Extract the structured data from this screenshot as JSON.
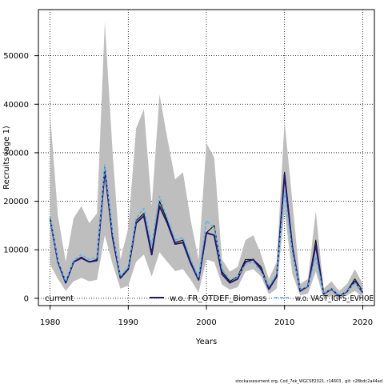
{
  "chart_data": {
    "type": "line",
    "xlabel": "Years",
    "ylabel": "Recruits (age 1)",
    "xlim": [
      1978.5,
      2021.5
    ],
    "ylim": [
      -1500,
      59500
    ],
    "x_ticks": [
      1980,
      1990,
      2000,
      2010,
      2020
    ],
    "y_ticks": [
      0,
      10000,
      20000,
      30000,
      40000,
      50000
    ],
    "grid": true,
    "legend_position": "bottom",
    "x": [
      1980,
      1981,
      1982,
      1983,
      1984,
      1985,
      1986,
      1987,
      1988,
      1989,
      1990,
      1991,
      1992,
      1993,
      1994,
      1995,
      1996,
      1997,
      1998,
      1999,
      2000,
      2001,
      2002,
      2003,
      2004,
      2005,
      2006,
      2007,
      2008,
      2009,
      2010,
      2011,
      2012,
      2013,
      2014,
      2015,
      2016,
      2017,
      2018,
      2019,
      2020
    ],
    "band": {
      "color": "#bebebe",
      "lower": [
        7000,
        4000,
        1500,
        3500,
        4200,
        3500,
        3800,
        13000,
        7000,
        2000,
        2600,
        7500,
        9000,
        4500,
        9500,
        7500,
        5600,
        6000,
        3800,
        1200,
        8000,
        7500,
        2800,
        1800,
        2300,
        5500,
        6000,
        4500,
        800,
        2000,
        18000,
        5000,
        600,
        1000,
        5500,
        50,
        400,
        100,
        600,
        1500,
        300
      ],
      "upper": [
        38000,
        17000,
        7500,
        16500,
        19000,
        15500,
        17500,
        57000,
        30000,
        8000,
        14500,
        35000,
        39000,
        19000,
        42000,
        33000,
        24500,
        26000,
        16000,
        8000,
        32000,
        29000,
        8000,
        5500,
        6500,
        12000,
        13000,
        9000,
        4000,
        7500,
        36500,
        20000,
        3000,
        4000,
        18000,
        2000,
        3500,
        1500,
        3000,
        6000,
        3000
      ]
    },
    "series": [
      {
        "name": "current",
        "color": "#000000",
        "width": 1,
        "values": [
          16500,
          7500,
          3500,
          7500,
          8500,
          7500,
          8000,
          27000,
          13000,
          4500,
          6000,
          16000,
          17500,
          9500,
          20000,
          16000,
          11500,
          12000,
          7500,
          4000,
          13500,
          15000,
          5500,
          3500,
          4500,
          8000,
          8000,
          6500,
          2000,
          4500,
          26000,
          11000,
          1500,
          2500,
          12000,
          1000,
          2000,
          500,
          1500,
          4000,
          1500
        ]
      },
      {
        "name": "w.o. FR_OTDEF_Biomass",
        "color": "#27186a",
        "width": 2,
        "values": [
          16500,
          7500,
          3200,
          7500,
          8300,
          7500,
          7800,
          26500,
          12500,
          4200,
          6000,
          15500,
          17000,
          9000,
          19000,
          15500,
          11200,
          11500,
          7200,
          3800,
          13500,
          13000,
          5000,
          3200,
          4000,
          7500,
          8000,
          6000,
          1900,
          4500,
          25500,
          10500,
          1500,
          2500,
          11000,
          900,
          1900,
          500,
          1400,
          3500,
          1200
        ]
      },
      {
        "name": "w.o. VAST_IGFS_EVHOE",
        "color": "#57b4e6",
        "width": 1.5,
        "dashed": true,
        "values": [
          16800,
          7800,
          3500,
          7800,
          9000,
          8000,
          8500,
          27500,
          13500,
          4500,
          6500,
          16500,
          18500,
          11000,
          21000,
          16500,
          12000,
          12500,
          8000,
          4200,
          16000,
          14500,
          6000,
          3800,
          4500,
          7000,
          7500,
          5500,
          2500,
          5000,
          22000,
          9500,
          1800,
          2500,
          8500,
          1000,
          2000,
          600,
          1500,
          3200,
          1500
        ]
      }
    ],
    "footer": "stockassessment.org,  Cod_7ek_WGCSE2021,  r14603 ,  git: c28bdc2a44ad"
  }
}
